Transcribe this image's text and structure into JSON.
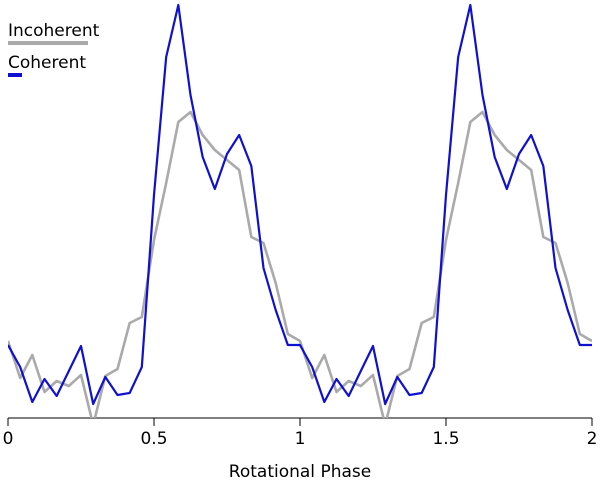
{
  "chart_data": {
    "type": "line",
    "x_label": "Rotational Phase",
    "x": [
      0,
      0.0417,
      0.0833,
      0.125,
      0.1667,
      0.2083,
      0.25,
      0.2917,
      0.3333,
      0.375,
      0.4167,
      0.4583,
      0.5,
      0.5417,
      0.5833,
      0.625,
      0.6667,
      0.7083,
      0.75,
      0.7917,
      0.8333,
      0.875,
      0.9167,
      0.9583,
      1,
      1.0417,
      1.0833,
      1.125,
      1.1667,
      1.2083,
      1.25,
      1.2917,
      1.3333,
      1.375,
      1.4167,
      1.4583,
      1.5,
      1.5417,
      1.5833,
      1.625,
      1.6667,
      1.7083,
      1.75,
      1.7917,
      1.8333,
      1.875,
      1.9167,
      1.9583,
      2
    ],
    "series": [
      {
        "name": "Incoherent",
        "color": "#aaaaaa",
        "values": [
          77,
          40,
          63,
          26,
          37,
          32,
          43,
          -7,
          42,
          49,
          95,
          101,
          178,
          235,
          296,
          306,
          283,
          268,
          258,
          248,
          181,
          175,
          135,
          84,
          77,
          40,
          63,
          26,
          37,
          32,
          43,
          -7,
          42,
          49,
          95,
          101,
          178,
          235,
          296,
          306,
          283,
          268,
          258,
          248,
          181,
          175,
          135,
          84,
          77
        ]
      },
      {
        "name": "Coherent",
        "color": "#1010d0",
        "values": [
          73,
          51,
          16,
          39,
          22,
          47,
          72,
          14,
          41,
          23,
          25,
          51,
          223,
          361,
          413,
          323,
          261,
          229,
          264,
          283,
          252,
          150,
          108,
          73,
          73,
          51,
          16,
          39,
          22,
          47,
          72,
          14,
          41,
          23,
          25,
          51,
          223,
          361,
          413,
          323,
          261,
          229,
          264,
          283,
          252,
          150,
          108,
          73,
          73
        ]
      }
    ],
    "xlim": [
      0,
      2
    ],
    "xticks": [
      0,
      0.5,
      1,
      1.5,
      2
    ],
    "ylim": [
      0,
      418
    ]
  }
}
